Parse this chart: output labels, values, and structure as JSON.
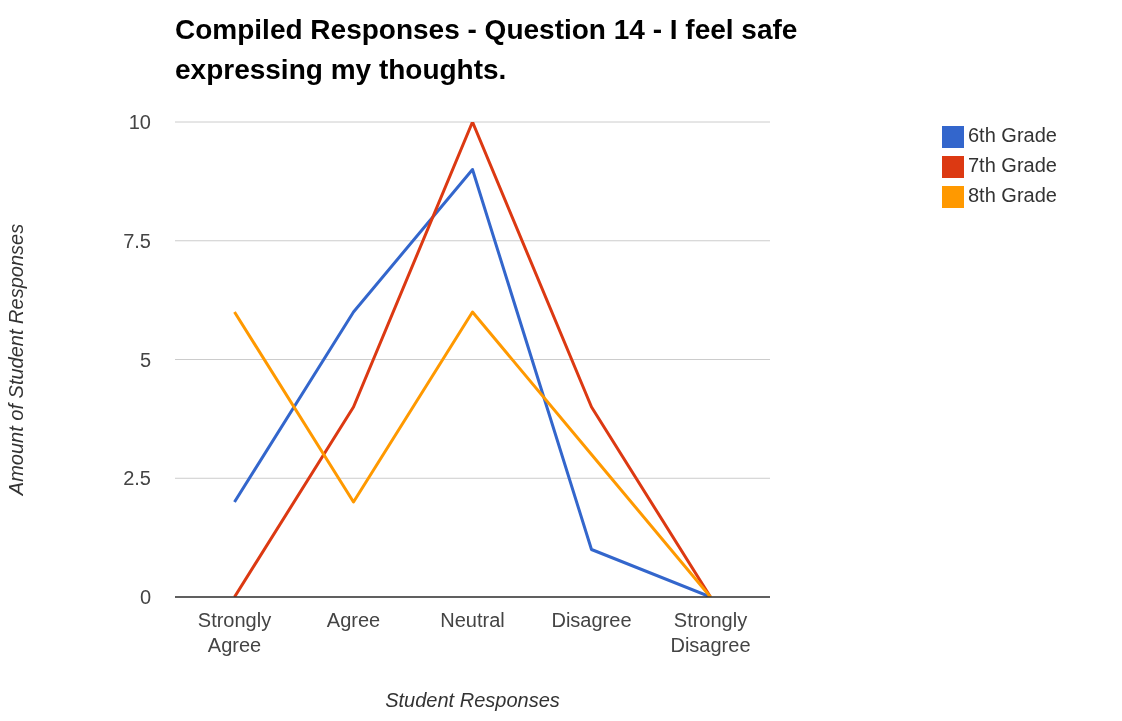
{
  "chart_data": {
    "type": "line",
    "title": "Compiled Responses - Question 14 - I feel safe expressing my thoughts.",
    "xlabel": "Student Responses",
    "ylabel": "Amount of Student Responses",
    "categories": [
      "Strongly Agree",
      "Agree",
      "Neutral",
      "Disagree",
      "Strongly Disagree"
    ],
    "series": [
      {
        "name": "6th Grade",
        "color": "#3366cc",
        "values": [
          2,
          6,
          9,
          1,
          0
        ]
      },
      {
        "name": "7th Grade",
        "color": "#dc3912",
        "values": [
          0,
          4,
          10,
          4,
          0
        ]
      },
      {
        "name": "8th Grade",
        "color": "#ff9900",
        "values": [
          6,
          2,
          6,
          3,
          0
        ]
      }
    ],
    "ylim": [
      0,
      10
    ],
    "yticks": [
      0,
      2.5,
      5,
      7.5,
      10
    ],
    "grid": "y",
    "legend": "top right",
    "marker": "none",
    "line_style": "solid"
  }
}
